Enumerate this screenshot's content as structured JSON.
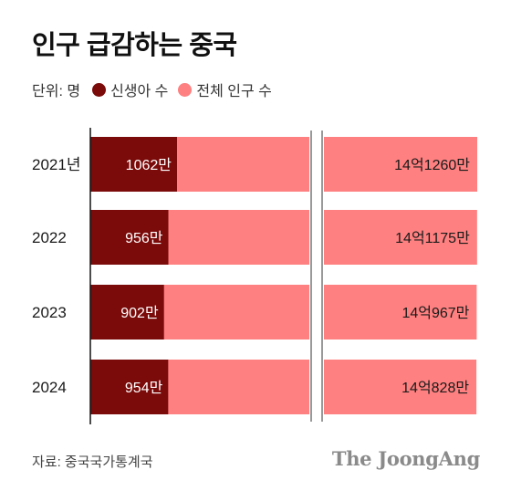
{
  "chart_data": {
    "type": "bar",
    "title": "인구 급감하는 중국",
    "unit_label": "단위: 명",
    "categories": [
      "2021년",
      "2022",
      "2023",
      "2024"
    ],
    "series": [
      {
        "name": "신생아 수",
        "color": "#7b0a0a",
        "values": [
          10620000,
          9560000,
          9020000,
          9540000
        ],
        "labels": [
          "1062만",
          "956만",
          "902만",
          "954만"
        ]
      },
      {
        "name": "전체 인구 수",
        "color": "#fe8080",
        "values": [
          1412600000,
          1411750000,
          1409670000,
          1408280000
        ],
        "labels": [
          "14억1260만",
          "14억1175만",
          "14억967만",
          "14억828만"
        ]
      }
    ],
    "axis_break": true,
    "grid": false,
    "legend_position": "top"
  },
  "footer": {
    "source": "자료: 중국국가통계국",
    "brand": "The JoongAng"
  }
}
